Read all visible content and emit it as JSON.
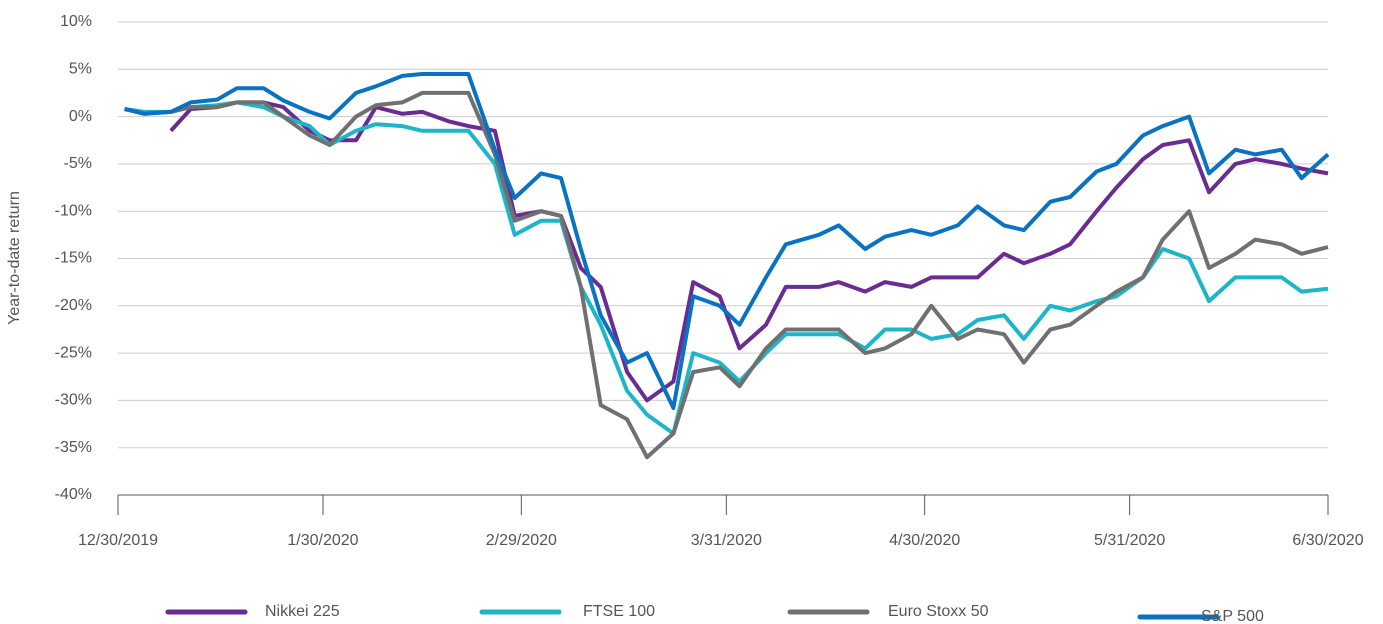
{
  "chart_data": {
    "type": "line",
    "y_label": "Year-to-date return",
    "x": [
      "12/31/2019",
      "1/3/2020",
      "1/7/2020",
      "1/10/2020",
      "1/14/2020",
      "1/17/2020",
      "1/21/2020",
      "1/24/2020",
      "1/28/2020",
      "1/31/2020",
      "2/4/2020",
      "2/7/2020",
      "2/11/2020",
      "2/14/2020",
      "2/18/2020",
      "2/21/2020",
      "2/25/2020",
      "2/28/2020",
      "3/3/2020",
      "3/6/2020",
      "3/9/2020",
      "3/12/2020",
      "3/16/2020",
      "3/19/2020",
      "3/23/2020",
      "3/26/2020",
      "3/30/2020",
      "4/2/2020",
      "4/6/2020",
      "4/9/2020",
      "4/14/2020",
      "4/17/2020",
      "4/21/2020",
      "4/24/2020",
      "4/28/2020",
      "5/1/2020",
      "5/5/2020",
      "5/8/2020",
      "5/12/2020",
      "5/15/2020",
      "5/19/2020",
      "5/22/2020",
      "5/26/2020",
      "5/29/2020",
      "6/2/2020",
      "6/5/2020",
      "6/9/2020",
      "6/12/2020",
      "6/16/2020",
      "6/19/2020",
      "6/23/2020",
      "6/26/2020",
      "6/30/2020"
    ],
    "series": [
      {
        "name": "Nikkei 225",
        "color": "#6a2c91",
        "values": [
          null,
          null,
          -1.5,
          0.8,
          1,
          1.5,
          1.5,
          1,
          -1.5,
          -2.5,
          -2.5,
          1,
          0.3,
          0.5,
          -0.5,
          -1,
          -1.5,
          -10.5,
          -10,
          -10.5,
          -16,
          -18,
          -27,
          -30,
          -28,
          -17.5,
          -19,
          -24.5,
          -22,
          -18,
          -18,
          -17.5,
          -18.5,
          -17.5,
          -18,
          -17,
          -17,
          -17,
          -14.5,
          -15.5,
          -14.5,
          -13.5,
          -10,
          -7.5,
          -4.5,
          -3,
          -2.5,
          -8,
          -5,
          -4.5,
          -5,
          -5.5,
          -6
        ]
      },
      {
        "name": "FTSE 100",
        "color": "#1fb5c8",
        "values": [
          0.8,
          0.5,
          0.5,
          1,
          1.2,
          1.5,
          1,
          0,
          -1,
          -3,
          -1.5,
          -0.8,
          -1,
          -1.5,
          -1.5,
          -1.5,
          -5,
          -12.5,
          -11,
          -11,
          -18,
          -22,
          -29,
          -31.5,
          -33.5,
          -25,
          -26,
          -28,
          -25,
          -23,
          -23,
          -23,
          -24.5,
          -22.5,
          -22.5,
          -23.5,
          -23,
          -21.5,
          -21,
          -23.5,
          -20,
          -20.5,
          -19.5,
          -19,
          -17,
          -14,
          -15,
          -19.5,
          -17,
          -17,
          -17,
          -18.5,
          -18.2
        ]
      },
      {
        "name": "Euro Stoxx 50",
        "color": "#707070",
        "values": [
          0.8,
          0.3,
          0.5,
          1,
          1,
          1.5,
          1.5,
          0,
          -2,
          -3,
          0,
          1.2,
          1.5,
          2.5,
          2.5,
          2.5,
          -4,
          -11,
          -10,
          -10.5,
          -18,
          -30.5,
          -32,
          -36,
          -33.5,
          -27,
          -26.5,
          -28.5,
          -24.5,
          -22.5,
          -22.5,
          -22.5,
          -25,
          -24.5,
          -23,
          -20,
          -23.5,
          -22.5,
          -23,
          -26,
          -22.5,
          -22,
          -20,
          -18.5,
          -17,
          -13,
          -10,
          -16,
          -14.5,
          -13,
          -13.5,
          -14.5,
          -13.8
        ]
      },
      {
        "name": "S&P 500",
        "color": "#0a72c2",
        "values": [
          0.8,
          0.3,
          0.5,
          1.5,
          1.8,
          3,
          3,
          1.7,
          0.5,
          -0.2,
          2.5,
          3.2,
          4.3,
          4.5,
          4.5,
          4.5,
          -3.5,
          -8.6,
          -6,
          -6.5,
          -14,
          -21,
          -26,
          -25,
          -30.8,
          -19,
          -20,
          -22,
          -17,
          -13.5,
          -12.5,
          -11.5,
          -14,
          -12.7,
          -12,
          -12.5,
          -11.5,
          -9.5,
          -11.5,
          -12,
          -9,
          -8.5,
          -5.8,
          -5,
          -2,
          -1,
          0,
          -6,
          -3.5,
          -4,
          -3.5,
          -6.5,
          -4
        ]
      }
    ],
    "xlim": [
      "12/30/2019",
      "6/30/2020"
    ],
    "xticks": [
      "12/30/2019",
      "1/30/2020",
      "2/29/2020",
      "3/31/2020",
      "4/30/2020",
      "5/31/2020",
      "6/30/2020"
    ],
    "ylim": [
      -40,
      10
    ],
    "yticks": [
      {
        "value": -40,
        "label": "-40%"
      },
      {
        "value": -35,
        "label": "-35%"
      },
      {
        "value": -30,
        "label": "-30%"
      },
      {
        "value": -25,
        "label": "-25%"
      },
      {
        "value": -20,
        "label": "-20%"
      },
      {
        "value": -15,
        "label": "-15%"
      },
      {
        "value": -10,
        "label": "-10%"
      },
      {
        "value": -5,
        "label": "-5%"
      },
      {
        "value": 0,
        "label": "0%"
      },
      {
        "value": 5,
        "label": "5%"
      },
      {
        "value": 10,
        "label": "10%"
      }
    ],
    "grid": true,
    "legend": "bottom"
  }
}
